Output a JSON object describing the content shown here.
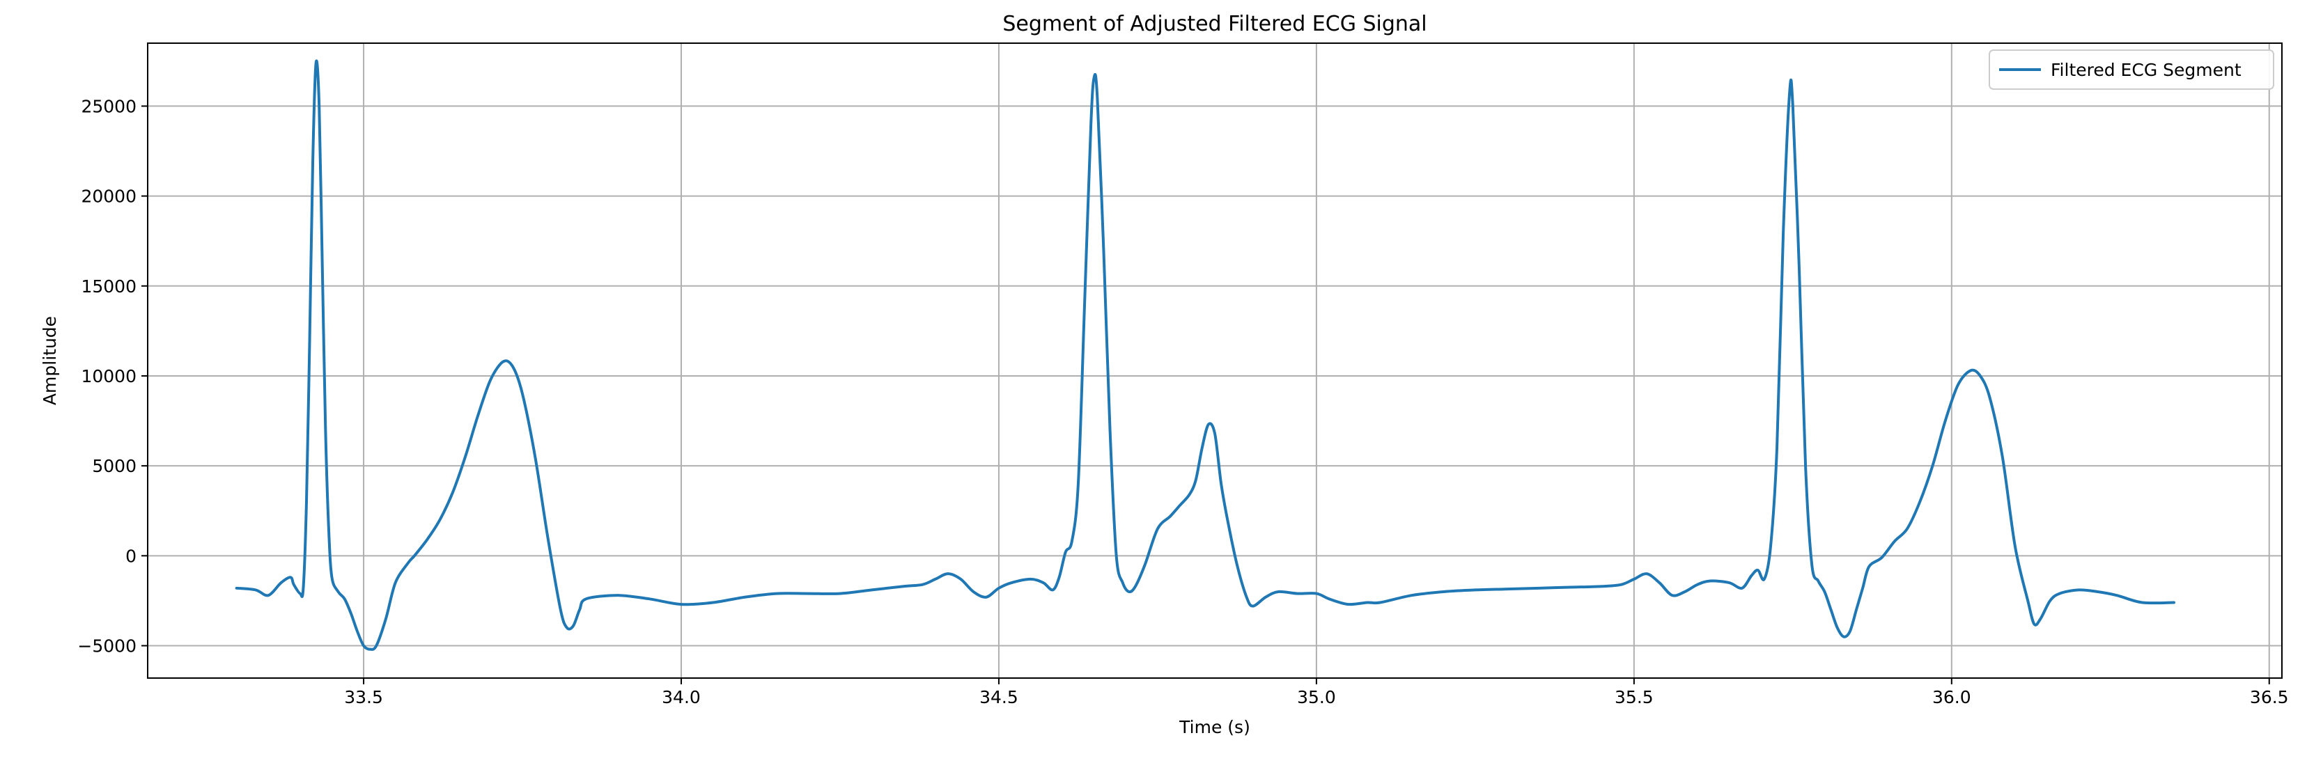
{
  "chart_data": {
    "type": "line",
    "title": "Segment of Adjusted Filtered ECG Signal",
    "xlabel": "Time (s)",
    "ylabel": "Amplitude",
    "xlim": [
      33.16,
      36.52
    ],
    "ylim": [
      -6800,
      28500
    ],
    "xticks": [
      33.5,
      34.0,
      34.5,
      35.0,
      35.5,
      36.0,
      36.5
    ],
    "xtick_labels": [
      "33.5",
      "34.0",
      "34.5",
      "35.0",
      "35.5",
      "36.0",
      "36.5"
    ],
    "yticks": [
      -5000,
      0,
      5000,
      10000,
      15000,
      20000,
      25000
    ],
    "ytick_labels": [
      "−5000",
      "0",
      "5000",
      "10000",
      "15000",
      "20000",
      "25000"
    ],
    "grid": true,
    "legend_position": "upper right",
    "series": [
      {
        "name": "Filtered ECG Segment",
        "color": "#1f77b4",
        "points": [
          [
            33.3,
            -1800
          ],
          [
            33.33,
            -1900
          ],
          [
            33.35,
            -2200
          ],
          [
            33.37,
            -1500
          ],
          [
            33.385,
            -1200
          ],
          [
            33.39,
            -1600
          ],
          [
            33.4,
            -2100
          ],
          [
            33.405,
            -1800
          ],
          [
            33.41,
            3000
          ],
          [
            33.415,
            12000
          ],
          [
            33.42,
            22000
          ],
          [
            33.425,
            27400
          ],
          [
            33.43,
            25000
          ],
          [
            33.435,
            16000
          ],
          [
            33.44,
            7000
          ],
          [
            33.445,
            1500
          ],
          [
            33.45,
            -1200
          ],
          [
            33.46,
            -2000
          ],
          [
            33.47,
            -2400
          ],
          [
            33.48,
            -3200
          ],
          [
            33.49,
            -4200
          ],
          [
            33.5,
            -5000
          ],
          [
            33.51,
            -5200
          ],
          [
            33.52,
            -5000
          ],
          [
            33.535,
            -3500
          ],
          [
            33.55,
            -1500
          ],
          [
            33.57,
            -400
          ],
          [
            33.58,
            0
          ],
          [
            33.6,
            900
          ],
          [
            33.62,
            2000
          ],
          [
            33.64,
            3500
          ],
          [
            33.66,
            5500
          ],
          [
            33.68,
            7800
          ],
          [
            33.7,
            9800
          ],
          [
            33.72,
            10800
          ],
          [
            33.735,
            10500
          ],
          [
            33.75,
            9000
          ],
          [
            33.77,
            5500
          ],
          [
            33.79,
            1000
          ],
          [
            33.81,
            -3000
          ],
          [
            33.82,
            -4000
          ],
          [
            33.83,
            -3900
          ],
          [
            33.84,
            -3000
          ],
          [
            33.85,
            -2400
          ],
          [
            33.9,
            -2200
          ],
          [
            33.95,
            -2400
          ],
          [
            34.0,
            -2700
          ],
          [
            34.05,
            -2600
          ],
          [
            34.1,
            -2300
          ],
          [
            34.15,
            -2100
          ],
          [
            34.2,
            -2100
          ],
          [
            34.25,
            -2100
          ],
          [
            34.3,
            -1900
          ],
          [
            34.35,
            -1700
          ],
          [
            34.38,
            -1600
          ],
          [
            34.4,
            -1300
          ],
          [
            34.42,
            -1000
          ],
          [
            34.44,
            -1300
          ],
          [
            34.46,
            -2000
          ],
          [
            34.48,
            -2300
          ],
          [
            34.5,
            -1800
          ],
          [
            34.52,
            -1500
          ],
          [
            34.55,
            -1300
          ],
          [
            34.57,
            -1500
          ],
          [
            34.585,
            -1900
          ],
          [
            34.595,
            -1200
          ],
          [
            34.605,
            200
          ],
          [
            34.615,
            800
          ],
          [
            34.625,
            4000
          ],
          [
            34.635,
            14000
          ],
          [
            34.645,
            24000
          ],
          [
            34.65,
            26600
          ],
          [
            34.655,
            25500
          ],
          [
            34.665,
            17000
          ],
          [
            34.675,
            7000
          ],
          [
            34.685,
            0
          ],
          [
            34.695,
            -1500
          ],
          [
            34.705,
            -2000
          ],
          [
            34.715,
            -1700
          ],
          [
            34.73,
            -500
          ],
          [
            34.75,
            1500
          ],
          [
            34.77,
            2200
          ],
          [
            34.785,
            2800
          ],
          [
            34.8,
            3400
          ],
          [
            34.81,
            4200
          ],
          [
            34.82,
            6000
          ],
          [
            34.83,
            7300
          ],
          [
            34.84,
            6800
          ],
          [
            34.85,
            4000
          ],
          [
            34.86,
            2000
          ],
          [
            34.875,
            -500
          ],
          [
            34.89,
            -2300
          ],
          [
            34.9,
            -2800
          ],
          [
            34.92,
            -2300
          ],
          [
            34.94,
            -2000
          ],
          [
            34.97,
            -2100
          ],
          [
            35.0,
            -2100
          ],
          [
            35.02,
            -2400
          ],
          [
            35.05,
            -2700
          ],
          [
            35.08,
            -2600
          ],
          [
            35.1,
            -2600
          ],
          [
            35.15,
            -2200
          ],
          [
            35.2,
            -2000
          ],
          [
            35.25,
            -1900
          ],
          [
            35.3,
            -1850
          ],
          [
            35.35,
            -1800
          ],
          [
            35.4,
            -1750
          ],
          [
            35.45,
            -1700
          ],
          [
            35.48,
            -1600
          ],
          [
            35.5,
            -1300
          ],
          [
            35.52,
            -1000
          ],
          [
            35.54,
            -1500
          ],
          [
            35.56,
            -2200
          ],
          [
            35.58,
            -2000
          ],
          [
            35.6,
            -1600
          ],
          [
            35.62,
            -1400
          ],
          [
            35.65,
            -1500
          ],
          [
            35.67,
            -1800
          ],
          [
            35.685,
            -1100
          ],
          [
            35.695,
            -800
          ],
          [
            35.705,
            -1300
          ],
          [
            35.715,
            500
          ],
          [
            35.725,
            6000
          ],
          [
            35.735,
            18000
          ],
          [
            35.745,
            25800
          ],
          [
            35.75,
            25000
          ],
          [
            35.76,
            16000
          ],
          [
            35.77,
            5000
          ],
          [
            35.78,
            -500
          ],
          [
            35.79,
            -1400
          ],
          [
            35.8,
            -2000
          ],
          [
            35.81,
            -3000
          ],
          [
            35.82,
            -4000
          ],
          [
            35.83,
            -4500
          ],
          [
            35.84,
            -4200
          ],
          [
            35.85,
            -3000
          ],
          [
            35.86,
            -1800
          ],
          [
            35.87,
            -600
          ],
          [
            35.89,
            -100
          ],
          [
            35.91,
            800
          ],
          [
            35.93,
            1500
          ],
          [
            35.95,
            3000
          ],
          [
            35.97,
            5000
          ],
          [
            35.99,
            7500
          ],
          [
            36.01,
            9500
          ],
          [
            36.03,
            10300
          ],
          [
            36.045,
            10000
          ],
          [
            36.06,
            8800
          ],
          [
            36.08,
            5500
          ],
          [
            36.1,
            500
          ],
          [
            36.12,
            -2500
          ],
          [
            36.13,
            -3800
          ],
          [
            36.14,
            -3500
          ],
          [
            36.155,
            -2500
          ],
          [
            36.17,
            -2100
          ],
          [
            36.2,
            -1900
          ],
          [
            36.23,
            -2000
          ],
          [
            36.26,
            -2200
          ],
          [
            36.3,
            -2600
          ],
          [
            36.35,
            -2600
          ]
        ]
      }
    ]
  }
}
